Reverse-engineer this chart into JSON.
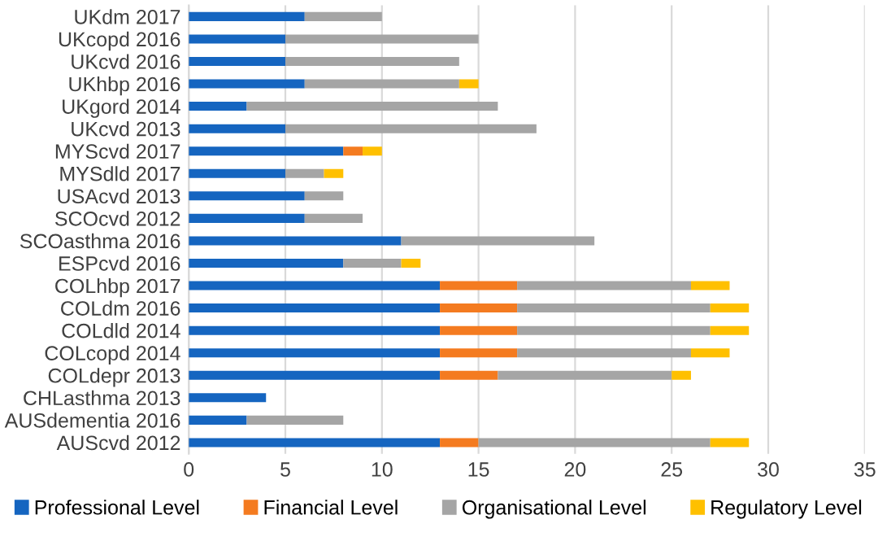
{
  "chart_data": {
    "type": "bar",
    "orientation": "horizontal",
    "stacked": true,
    "categories": [
      "UKdm 2017",
      "UKcopd 2016",
      "UKcvd 2016",
      "UKhbp 2016",
      "UKgord 2014",
      "UKcvd 2013",
      "MYScvd 2017",
      "MYSdld 2017",
      "USAcvd 2013",
      "SCOcvd 2012",
      "SCOasthma 2016",
      "ESPcvd 2016",
      "COLhbp 2017",
      "COLdm 2016",
      "COLdld 2014",
      "COLcopd 2014",
      "COLdepr 2013",
      "CHLasthma 2013",
      "AUSdementia 2016",
      "AUScvd 2012"
    ],
    "series": [
      {
        "name": "Professional Level",
        "color": "#1565c0",
        "values": [
          6,
          5,
          5,
          6,
          3,
          5,
          8,
          5,
          6,
          6,
          11,
          8,
          13,
          13,
          13,
          13,
          13,
          4,
          3,
          13
        ]
      },
      {
        "name": "Financial Level",
        "color": "#f47b20",
        "values": [
          0,
          0,
          0,
          0,
          0,
          0,
          1,
          0,
          0,
          0,
          0,
          0,
          4,
          4,
          4,
          4,
          3,
          0,
          0,
          2
        ]
      },
      {
        "name": "Organisational Level",
        "color": "#a5a5a5",
        "values": [
          4,
          10,
          9,
          8,
          13,
          13,
          0,
          2,
          2,
          3,
          10,
          3,
          9,
          10,
          10,
          9,
          9,
          0,
          5,
          12
        ]
      },
      {
        "name": "Regulatory Level",
        "color": "#ffc000",
        "values": [
          0,
          0,
          0,
          1,
          0,
          0,
          1,
          1,
          0,
          0,
          0,
          1,
          2,
          2,
          2,
          2,
          1,
          0,
          0,
          2
        ]
      }
    ],
    "xlim": [
      0,
      35
    ],
    "xticks": [
      0,
      5,
      10,
      15,
      20,
      25,
      30,
      35
    ],
    "grid": "x",
    "legend": "bottom"
  }
}
